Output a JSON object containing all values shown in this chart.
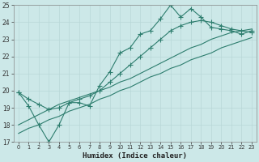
{
  "xlabel": "Humidex (Indice chaleur)",
  "background_color": "#cce8e8",
  "grid_color": "#b8d8d8",
  "line_color": "#2d7d6e",
  "x_values": [
    0,
    1,
    2,
    3,
    4,
    5,
    6,
    7,
    8,
    9,
    10,
    11,
    12,
    13,
    14,
    15,
    16,
    17,
    18,
    19,
    20,
    21,
    22,
    23
  ],
  "series_jagged": [
    19.9,
    19.1,
    18.0,
    17.0,
    18.0,
    19.3,
    19.3,
    19.1,
    20.3,
    21.1,
    22.2,
    22.5,
    23.3,
    23.5,
    24.2,
    25.0,
    24.3,
    24.8,
    24.3,
    23.7,
    23.6,
    23.5,
    23.3,
    23.5
  ],
  "series_smooth_top": [
    19.9,
    19.5,
    19.2,
    18.9,
    19.0,
    19.3,
    19.5,
    19.7,
    20.0,
    20.5,
    21.0,
    21.5,
    22.0,
    22.5,
    23.0,
    23.5,
    23.8,
    24.0,
    24.1,
    24.0,
    23.8,
    23.6,
    23.5,
    23.4
  ],
  "series_straight_upper": [
    18.0,
    18.3,
    18.6,
    18.9,
    19.2,
    19.4,
    19.6,
    19.8,
    20.0,
    20.2,
    20.5,
    20.7,
    21.0,
    21.3,
    21.6,
    21.9,
    22.2,
    22.5,
    22.7,
    23.0,
    23.2,
    23.4,
    23.5,
    23.6
  ],
  "series_straight_lower": [
    17.5,
    17.8,
    18.0,
    18.3,
    18.5,
    18.8,
    19.0,
    19.2,
    19.5,
    19.7,
    20.0,
    20.2,
    20.5,
    20.8,
    21.0,
    21.3,
    21.5,
    21.8,
    22.0,
    22.2,
    22.5,
    22.7,
    22.9,
    23.1
  ],
  "ylim": [
    17,
    25
  ],
  "xlim": [
    -0.5,
    23.5
  ],
  "yticks": [
    17,
    18,
    19,
    20,
    21,
    22,
    23,
    24,
    25
  ],
  "xticks": [
    0,
    1,
    2,
    3,
    4,
    5,
    6,
    7,
    8,
    9,
    10,
    11,
    12,
    13,
    14,
    15,
    16,
    17,
    18,
    19,
    20,
    21,
    22,
    23
  ]
}
